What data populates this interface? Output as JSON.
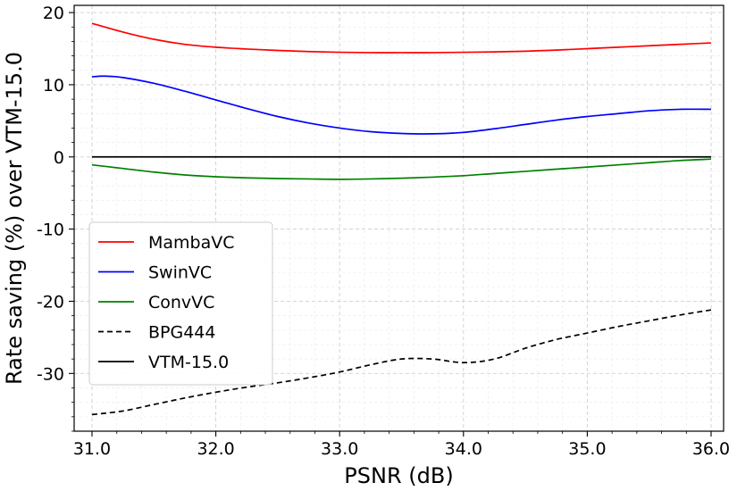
{
  "chart_data": {
    "type": "line",
    "xlabel": "PSNR (dB)",
    "ylabel": "Rate saving (%) over VTM-15.0",
    "xlim": [
      31.0,
      36.0
    ],
    "ylim": [
      -38,
      21
    ],
    "x_ticks": [
      "31.0",
      "32.0",
      "33.0",
      "34.0",
      "35.0",
      "36.0"
    ],
    "x_tick_values": [
      31.0,
      32.0,
      33.0,
      34.0,
      35.0,
      36.0
    ],
    "y_ticks": [
      "20",
      "10",
      "0",
      "-10",
      "-20",
      "-30"
    ],
    "y_tick_values": [
      20,
      10,
      0,
      -10,
      -20,
      -30
    ],
    "grid": true,
    "legend_position": "center-left",
    "series": [
      {
        "name": "MambaVC",
        "color": "#ff0000",
        "dash": "solid",
        "x": [
          31.0,
          31.25,
          31.5,
          31.75,
          32.0,
          32.25,
          32.5,
          32.75,
          33.0,
          33.25,
          33.5,
          33.75,
          34.0,
          34.25,
          34.5,
          34.75,
          35.0,
          35.25,
          35.5,
          35.75,
          36.0
        ],
        "y": [
          18.5,
          17.3,
          16.3,
          15.6,
          15.2,
          14.95,
          14.75,
          14.6,
          14.5,
          14.45,
          14.45,
          14.45,
          14.5,
          14.55,
          14.65,
          14.8,
          15.0,
          15.2,
          15.4,
          15.6,
          15.8
        ]
      },
      {
        "name": "SwinVC",
        "color": "#0000ff",
        "dash": "solid",
        "x": [
          31.0,
          31.1,
          31.25,
          31.5,
          31.75,
          32.0,
          32.25,
          32.5,
          32.75,
          33.0,
          33.25,
          33.5,
          33.75,
          34.0,
          34.25,
          34.5,
          34.75,
          35.0,
          35.25,
          35.5,
          35.75,
          36.0
        ],
        "y": [
          11.1,
          11.2,
          11.0,
          10.2,
          9.1,
          7.9,
          6.7,
          5.6,
          4.7,
          4.0,
          3.5,
          3.25,
          3.2,
          3.4,
          3.9,
          4.5,
          5.1,
          5.6,
          6.0,
          6.4,
          6.6,
          6.6
        ]
      },
      {
        "name": "ConvVC",
        "color": "#008000",
        "dash": "solid",
        "x": [
          31.0,
          31.25,
          31.5,
          31.75,
          32.0,
          32.25,
          32.5,
          32.75,
          33.0,
          33.25,
          33.5,
          33.75,
          34.0,
          34.25,
          34.5,
          34.75,
          35.0,
          35.25,
          35.5,
          35.75,
          36.0
        ],
        "y": [
          -1.1,
          -1.6,
          -2.1,
          -2.5,
          -2.75,
          -2.9,
          -3.0,
          -3.05,
          -3.1,
          -3.05,
          -2.95,
          -2.8,
          -2.6,
          -2.3,
          -2.0,
          -1.7,
          -1.4,
          -1.1,
          -0.8,
          -0.5,
          -0.3
        ]
      },
      {
        "name": "BPG444",
        "color": "#000000",
        "dash": "dashed",
        "x": [
          31.0,
          31.25,
          31.5,
          31.75,
          32.0,
          32.25,
          32.5,
          32.75,
          33.0,
          33.25,
          33.5,
          33.75,
          34.0,
          34.25,
          34.5,
          34.75,
          35.0,
          35.25,
          35.5,
          35.75,
          36.0
        ],
        "y": [
          -35.7,
          -35.2,
          -34.3,
          -33.4,
          -32.6,
          -31.9,
          -31.3,
          -30.6,
          -29.8,
          -28.8,
          -28.0,
          -28.0,
          -28.5,
          -28.0,
          -26.5,
          -25.3,
          -24.4,
          -23.5,
          -22.7,
          -21.9,
          -21.2
        ]
      },
      {
        "name": "VTM-15.0",
        "color": "#000000",
        "dash": "solid",
        "x": [
          31.0,
          36.0
        ],
        "y": [
          0,
          0
        ]
      }
    ]
  }
}
